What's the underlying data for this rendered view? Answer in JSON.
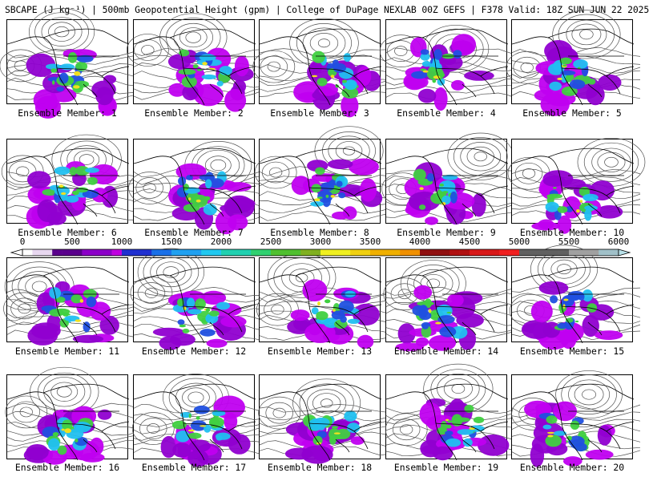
{
  "title": "SBCAPE (J kg⁻¹) | 500mb Geopotential Height (gpm) | College of DuPage NEXLAB 00Z GEFS | F378 Valid: 18Z SUN JUN 22 2025",
  "member_prefix": "Ensemble Member: ",
  "members": [
    1,
    2,
    3,
    4,
    5,
    6,
    7,
    8,
    9,
    10,
    11,
    12,
    13,
    14,
    15,
    16,
    17,
    18,
    19,
    20
  ],
  "colorbar": {
    "ticks": [
      "0",
      "500",
      "1000",
      "1500",
      "2000",
      "2500",
      "3000",
      "3500",
      "4000",
      "4500",
      "5000",
      "5500",
      "6000"
    ],
    "min": 0,
    "max": 6000,
    "step": 100,
    "stops": [
      [
        0,
        "#ffffff"
      ],
      [
        100,
        "#e8d8f0"
      ],
      [
        300,
        "#5a008c"
      ],
      [
        600,
        "#8c00c8"
      ],
      [
        900,
        "#c000e0"
      ],
      [
        1000,
        "#2030d0"
      ],
      [
        1300,
        "#1a70e8"
      ],
      [
        1500,
        "#20a0f0"
      ],
      [
        1750,
        "#20c8f0"
      ],
      [
        2000,
        "#20d0b0"
      ],
      [
        2250,
        "#30d070"
      ],
      [
        2500,
        "#50c030"
      ],
      [
        2750,
        "#80b020"
      ],
      [
        3000,
        "#f0f020"
      ],
      [
        3250,
        "#f0d010"
      ],
      [
        3500,
        "#f0b000"
      ],
      [
        3750,
        "#f09000"
      ],
      [
        4000,
        "#901010"
      ],
      [
        4250,
        "#b01010"
      ],
      [
        4500,
        "#d81818"
      ],
      [
        4750,
        "#f02020"
      ],
      [
        5000,
        "#606060"
      ],
      [
        5500,
        "#a0a0a0"
      ],
      [
        5750,
        "#a0c0c8"
      ],
      [
        6000,
        "#b8e0e8"
      ]
    ]
  },
  "colors": {
    "purple": "#9000d0",
    "violet": "#c000f0",
    "blue": "#2050e0",
    "cyan": "#20c0f0",
    "green": "#40d040",
    "yellow": "#f0e020",
    "contour": "#505050",
    "coast": "#000000"
  }
}
